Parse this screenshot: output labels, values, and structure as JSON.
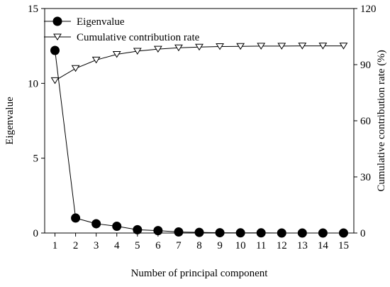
{
  "chart_data": {
    "type": "line",
    "xlabel": "Number of principal component",
    "ylabel": "Eigenvalue",
    "y2label": "Cumulative contribution rate (%)",
    "x": [
      1,
      2,
      3,
      4,
      5,
      6,
      7,
      8,
      9,
      10,
      11,
      12,
      13,
      14,
      15
    ],
    "xticks": [
      "1",
      "2",
      "3",
      "4",
      "5",
      "6",
      "7",
      "8",
      "9",
      "10",
      "11",
      "12",
      "13",
      "14",
      "15"
    ],
    "ylim": [
      0,
      15
    ],
    "yticks": [
      "0",
      "5",
      "10",
      "15"
    ],
    "y2lim": [
      0,
      120
    ],
    "y2ticks": [
      "0",
      "30",
      "60",
      "90",
      "120"
    ],
    "grid": false,
    "legend": "top-left",
    "series": [
      {
        "name": "Eigenvalue",
        "axis": "left",
        "marker": "filled-circle",
        "values": [
          12.2,
          1.0,
          0.62,
          0.45,
          0.22,
          0.16,
          0.07,
          0.04,
          0.02,
          0.01,
          0.01,
          0.0,
          0.0,
          0.0,
          0.0
        ]
      },
      {
        "name": "Cumulative contribution rate",
        "axis": "right",
        "marker": "open-triangle-down",
        "values": [
          81.5,
          88.0,
          92.5,
          95.5,
          97.2,
          98.3,
          99.0,
          99.4,
          99.7,
          99.8,
          99.9,
          99.9,
          100.0,
          100.0,
          100.0
        ]
      }
    ]
  }
}
